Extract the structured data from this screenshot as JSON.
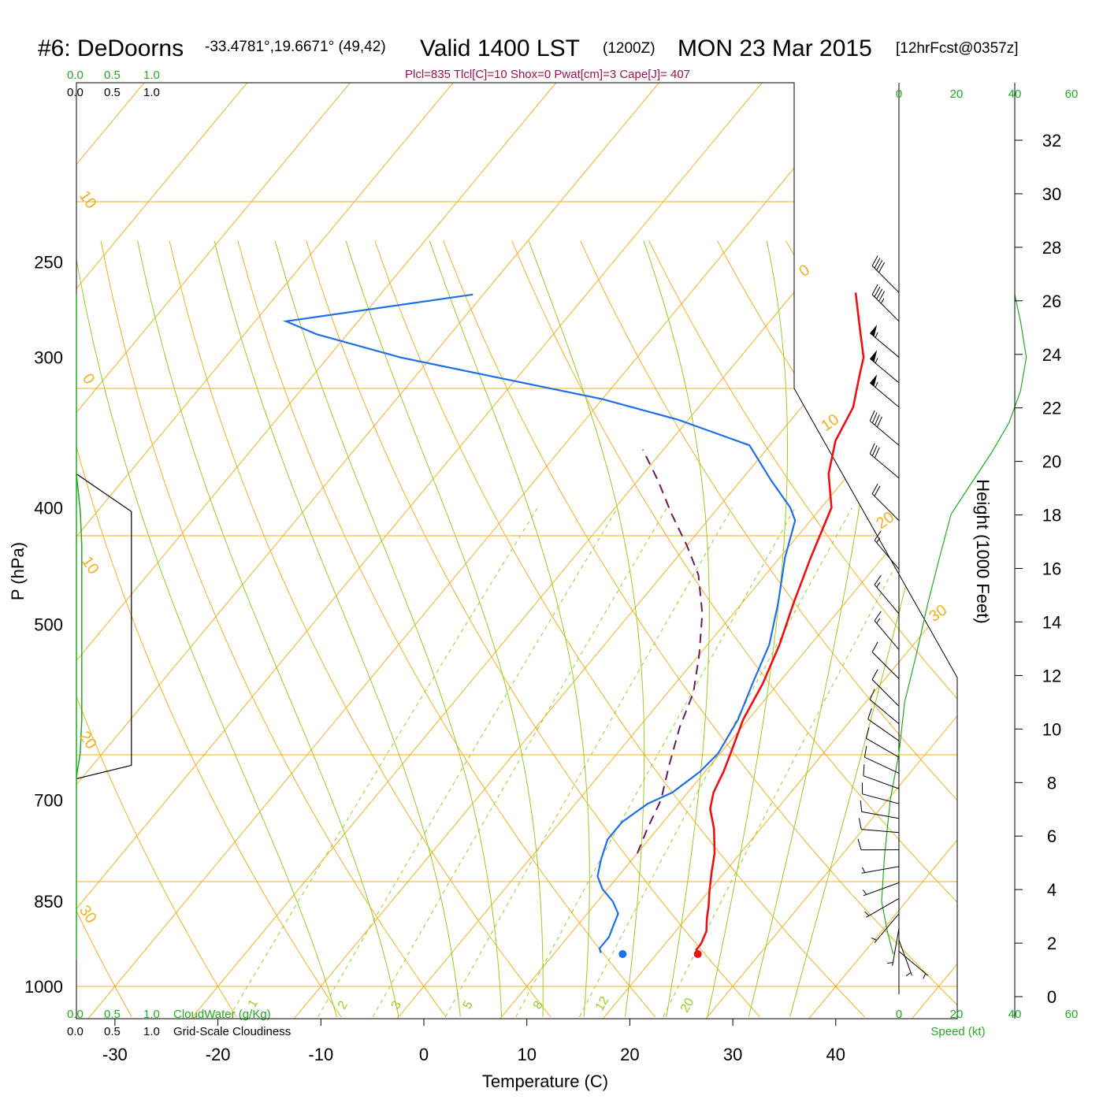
{
  "header": {
    "station": "#6: DeDoorns",
    "coords": "-33.4781°,19.6671° (49,42)",
    "valid": "Valid 1400 LST",
    "zulu": "(1200Z)",
    "date": "MON 23 Mar 2015",
    "fcst": "[12hrFcst@0357z]"
  },
  "params_line": "Plcl=835 Tlcl[C]=10 Shox=0 Pwat[cm]=3 Cape[J]= 407",
  "colors": {
    "temperature": "#ee1111",
    "dewpoint": "#1e6fe8",
    "parcel": "#6a1a5a",
    "isotherm": "#f0b020",
    "dry_adiabat": "#f0b020",
    "moist_adiabat": "#99cc22",
    "mixing_ratio": "#99cc22",
    "cloud_water": "#22aa22",
    "params": "#a0104a"
  },
  "left_scale": {
    "green_ticks": [
      "0.0",
      "0.5",
      "1.0"
    ],
    "black_ticks": [
      "0.0",
      "0.5",
      "1.0"
    ],
    "cloudwater_label": "CloudWater (g/Kg)",
    "cloudiness_label": "Grid-Scale Cloudiness"
  },
  "isotherm_labels": [
    "10",
    "0",
    "10",
    "20",
    "30",
    "0",
    "10",
    "20",
    "30"
  ],
  "mixing_ratio_labels": [
    "1",
    "2",
    "3",
    "5",
    "8",
    "12",
    "20"
  ],
  "wind_speed_axis": {
    "ticks": [
      "0",
      "20",
      "40",
      "60"
    ],
    "label": "Speed (kt)"
  },
  "chart_data": {
    "type": "line",
    "xlabel": "Temperature (C)",
    "ylabel": "P (hPa)",
    "xlim": [
      -34,
      36
    ],
    "ylim": [
      1040,
      250
    ],
    "x_ticks": [
      "-30",
      "-20",
      "-10",
      "0",
      "10",
      "20",
      "30",
      "40"
    ],
    "pressure_ticks": [
      "250",
      "300",
      "400",
      "500",
      "700",
      "850",
      "1000"
    ],
    "height_label": "Height (1000 Feet)",
    "height_ticks": [
      "0",
      "2",
      "4",
      "6",
      "8",
      "10",
      "12",
      "14",
      "16",
      "18",
      "20",
      "22",
      "24",
      "26",
      "28",
      "30",
      "32"
    ],
    "series": [
      {
        "key": "temperature",
        "points": [
          [
            24.0,
            938
          ],
          [
            23.5,
            932
          ],
          [
            23.5,
            922
          ],
          [
            23.0,
            900
          ],
          [
            22.0,
            878
          ],
          [
            21.2,
            858
          ],
          [
            20.0,
            832
          ],
          [
            18.8,
            805
          ],
          [
            17.5,
            775
          ],
          [
            15.5,
            740
          ],
          [
            13.5,
            712
          ],
          [
            12.5,
            690
          ],
          [
            11.8,
            663
          ],
          [
            11.0,
            640
          ],
          [
            9.5,
            600
          ],
          [
            8.5,
            560
          ],
          [
            7.0,
            520
          ],
          [
            5.0,
            480
          ],
          [
            3.0,
            440
          ],
          [
            1.0,
            400
          ],
          [
            -2.0,
            375
          ],
          [
            -4.0,
            352
          ],
          [
            -5.0,
            330
          ],
          [
            -7.0,
            310
          ],
          [
            -8.0,
            300
          ],
          [
            -10.5,
            285
          ],
          [
            -14.0,
            265
          ]
        ]
      },
      {
        "key": "dewpoint",
        "points": [
          [
            14.5,
            938
          ],
          [
            14.0,
            930
          ],
          [
            14.0,
            910
          ],
          [
            13.5,
            890
          ],
          [
            13.0,
            870
          ],
          [
            11.5,
            850
          ],
          [
            9.5,
            830
          ],
          [
            8.0,
            810
          ],
          [
            7.0,
            785
          ],
          [
            6.0,
            755
          ],
          [
            6.0,
            730
          ],
          [
            7.0,
            705
          ],
          [
            8.5,
            690
          ],
          [
            9.5,
            663
          ],
          [
            9.8,
            640
          ],
          [
            9.0,
            600
          ],
          [
            7.5,
            560
          ],
          [
            6.0,
            520
          ],
          [
            3.5,
            480
          ],
          [
            0.5,
            440
          ],
          [
            -1.5,
            410
          ],
          [
            -3.0,
            400
          ],
          [
            -7.0,
            380
          ],
          [
            -12.0,
            355
          ],
          [
            -21.0,
            338
          ],
          [
            -30.0,
            325
          ],
          [
            -39.0,
            315
          ],
          [
            -53.0,
            300
          ],
          [
            -63.0,
            287
          ],
          [
            -67.0,
            280
          ],
          [
            -51.0,
            266
          ]
        ]
      },
      {
        "key": "parcel",
        "points": [
          [
            10.0,
            775
          ],
          [
            9.0,
            740
          ],
          [
            8.0,
            700
          ],
          [
            6.0,
            655
          ],
          [
            4.0,
            610
          ],
          [
            2.5,
            570
          ],
          [
            0.0,
            530
          ],
          [
            -3.0,
            490
          ],
          [
            -6.5,
            455
          ],
          [
            -10.0,
            430
          ],
          [
            -14.0,
            405
          ],
          [
            -18.0,
            380
          ],
          [
            -22.0,
            358
          ]
        ]
      }
    ],
    "surface_temperature": 24.0,
    "surface_dewpoint": 16.7,
    "surface_pressure": 940,
    "cloudiness_profile": [
      [
        0.0,
        375
      ],
      [
        0.72,
        403
      ],
      [
        0.72,
        655
      ],
      [
        0.0,
        672
      ]
    ],
    "cloudwater_profile": [
      [
        0.0,
        375
      ],
      [
        0.05,
        402
      ],
      [
        0.07,
        430
      ],
      [
        0.07,
        600
      ],
      [
        0.05,
        640
      ],
      [
        0.0,
        670
      ]
    ],
    "wind_speed_profile": [
      [
        40,
        266
      ],
      [
        42,
        280
      ],
      [
        44,
        300
      ],
      [
        42,
        320
      ],
      [
        38,
        340
      ],
      [
        32,
        360
      ],
      [
        24,
        385
      ],
      [
        18,
        405
      ],
      [
        14,
        440
      ],
      [
        10,
        480
      ],
      [
        6,
        530
      ],
      [
        2,
        580
      ],
      [
        0,
        640
      ],
      [
        -3,
        700
      ],
      [
        -5,
        780
      ],
      [
        -6,
        850
      ],
      [
        -4,
        900
      ],
      [
        -2,
        940
      ]
    ],
    "wind_barbs": [
      {
        "p": 265,
        "dir": 315,
        "speed": 40
      },
      {
        "p": 280,
        "dir": 315,
        "speed": 45
      },
      {
        "p": 300,
        "dir": 310,
        "speed": 55
      },
      {
        "p": 315,
        "dir": 310,
        "speed": 55
      },
      {
        "p": 330,
        "dir": 310,
        "speed": 55
      },
      {
        "p": 355,
        "dir": 310,
        "speed": 40
      },
      {
        "p": 378,
        "dir": 310,
        "speed": 30
      },
      {
        "p": 410,
        "dir": 315,
        "speed": 20
      },
      {
        "p": 450,
        "dir": 320,
        "speed": 15
      },
      {
        "p": 490,
        "dir": 320,
        "speed": 15
      },
      {
        "p": 525,
        "dir": 320,
        "speed": 15
      },
      {
        "p": 555,
        "dir": 315,
        "speed": 10
      },
      {
        "p": 585,
        "dir": 315,
        "speed": 10
      },
      {
        "p": 605,
        "dir": 310,
        "speed": 10
      },
      {
        "p": 625,
        "dir": 305,
        "speed": 10
      },
      {
        "p": 645,
        "dir": 300,
        "speed": 10
      },
      {
        "p": 665,
        "dir": 295,
        "speed": 10
      },
      {
        "p": 685,
        "dir": 290,
        "speed": 10
      },
      {
        "p": 705,
        "dir": 285,
        "speed": 10
      },
      {
        "p": 725,
        "dir": 280,
        "speed": 10
      },
      {
        "p": 745,
        "dir": 275,
        "speed": 10
      },
      {
        "p": 770,
        "dir": 270,
        "speed": 10
      },
      {
        "p": 795,
        "dir": 260,
        "speed": 5
      },
      {
        "p": 820,
        "dir": 250,
        "speed": 5
      },
      {
        "p": 845,
        "dir": 240,
        "speed": 5
      },
      {
        "p": 870,
        "dir": 220,
        "speed": 5
      },
      {
        "p": 895,
        "dir": 190,
        "speed": 5
      },
      {
        "p": 915,
        "dir": 160,
        "speed": 5
      },
      {
        "p": 935,
        "dir": 130,
        "speed": 5
      }
    ]
  }
}
